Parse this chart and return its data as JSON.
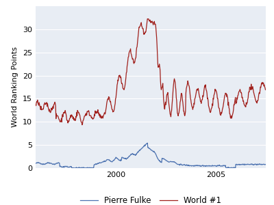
{
  "title": "",
  "ylabel": "World Ranking Points",
  "xlabel": "",
  "xlim": [
    1996.0,
    2007.5
  ],
  "ylim": [
    0,
    35
  ],
  "yticks": [
    0,
    5,
    10,
    15,
    20,
    25,
    30
  ],
  "xticks": [
    2000,
    2005
  ],
  "background_color": "#e8edf4",
  "figure_background": "#ffffff",
  "line_color_fulke": "#4c72b0",
  "line_color_world1": "#a0201c",
  "legend_labels": [
    "Pierre Fulke",
    "World #1"
  ],
  "grid_color": "#ffffff",
  "ylabel_fontsize": 8,
  "tick_fontsize": 8,
  "legend_fontsize": 8.5
}
